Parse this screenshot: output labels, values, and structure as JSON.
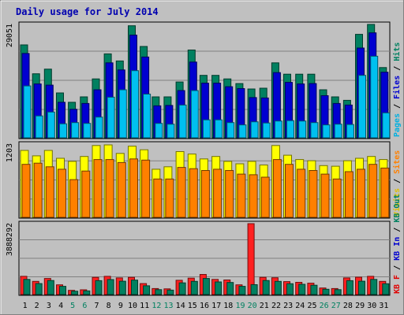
{
  "chart_data": {
    "type": "bar",
    "title": "Daily usage for July 2014",
    "categories": [
      "1",
      "2",
      "3",
      "4",
      "5",
      "6",
      "7",
      "8",
      "9",
      "10",
      "11",
      "12",
      "13",
      "14",
      "15",
      "16",
      "17",
      "18",
      "19",
      "20",
      "21",
      "22",
      "23",
      "24",
      "25",
      "26",
      "27",
      "28",
      "29",
      "30",
      "31"
    ],
    "weekend_days": [
      "5",
      "6",
      "12",
      "13",
      "19",
      "20",
      "26",
      "27"
    ],
    "panels": [
      {
        "name": "hits-files-pages",
        "max_label": "29051",
        "ymax": 29051,
        "side_labels": [
          {
            "text": "Pages",
            "color": "#00b0e0"
          },
          {
            "text": "Files",
            "color": "#0000d0"
          },
          {
            "text": "Hits",
            "color": "#008060"
          }
        ],
        "series": [
          {
            "name": "Hits",
            "color": "#008060",
            "values": [
              23800,
              16400,
              17600,
              11500,
              9100,
              10500,
              15100,
              21500,
              19700,
              28700,
              23400,
              10500,
              10500,
              14300,
              22500,
              16000,
              16000,
              15100,
              13900,
              12500,
              12700,
              19200,
              16300,
              16300,
              16300,
              12300,
              10500,
              9600,
              26500,
              29051,
              18000
            ]
          },
          {
            "name": "Files",
            "color": "#0000d0",
            "values": [
              21600,
              13800,
              13500,
              9100,
              7300,
              8800,
              12300,
              19200,
              17400,
              26300,
              20700,
              8200,
              8300,
              12100,
              19400,
              14000,
              14000,
              13100,
              12600,
              10300,
              10200,
              16700,
              14200,
              13800,
              13900,
              10800,
              8800,
              8400,
              23000,
              26900,
              16800
            ]
          },
          {
            "name": "Pages",
            "color": "#00c0f0",
            "values": [
              13300,
              5600,
              6600,
              3600,
              3900,
              3700,
              5300,
              10400,
              12300,
              17200,
              11200,
              3700,
              3500,
              8400,
              12100,
              4600,
              4600,
              3900,
              3300,
              4100,
              3800,
              4300,
              4400,
              4300,
              3900,
              3300,
              3500,
              3400,
              16000,
              20900,
              6400
            ]
          }
        ]
      },
      {
        "name": "visits-sites",
        "max_label": "1203",
        "ymax": 1203,
        "side_labels": [
          {
            "text": "Visits",
            "color": "#e0c000"
          },
          {
            "text": "Sites",
            "color": "#ff8000"
          }
        ],
        "series": [
          {
            "name": "Visits",
            "color": "#ffff00",
            "values": [
              1100,
              1010,
              1100,
              970,
              920,
              1000,
              1180,
              1190,
              1050,
              1170,
              1110,
              790,
              830,
              1080,
              1040,
              960,
              1000,
              920,
              880,
              920,
              860,
              1180,
              1020,
              950,
              930,
              850,
              840,
              930,
              970,
              1000,
              950
            ]
          },
          {
            "name": "Sites",
            "color": "#ff8000",
            "values": [
              870,
              890,
              830,
              790,
              620,
              760,
              950,
              950,
              900,
              960,
              940,
              630,
              630,
              820,
              800,
              770,
              790,
              770,
              710,
              700,
              660,
              950,
              870,
              790,
              770,
              710,
              630,
              750,
              790,
              870,
              810
            ]
          }
        ]
      },
      {
        "name": "kbf-kbin-kbout",
        "max_label": "3888292",
        "ymax": 3888292,
        "side_labels": [
          {
            "text": "KB F",
            "color": "#e00000"
          },
          {
            "text": "KB In",
            "color": "#0000d0"
          },
          {
            "text": "KB Out",
            "color": "#008060"
          }
        ],
        "series": [
          {
            "name": "KB F",
            "color": "#ff2020",
            "values": [
              1000000,
              720000,
              880000,
              530000,
              230000,
              260000,
              940000,
              1000000,
              910000,
              940000,
              600000,
              330000,
              310000,
              780000,
              900000,
              1100000,
              830000,
              800000,
              530000,
              3888292,
              940000,
              920000,
              710000,
              670000,
              620000,
              360000,
              330000,
              910000,
              950000,
              1000000,
              720000
            ]
          },
          {
            "name": "KB Out",
            "color": "#008060",
            "values": [
              830000,
              600000,
              770000,
              450000,
              180000,
              200000,
              760000,
              820000,
              730000,
              790000,
              480000,
              270000,
              240000,
              640000,
              720000,
              880000,
              690000,
              660000,
              450000,
              540000,
              770000,
              720000,
              590000,
              560000,
              510000,
              290000,
              270000,
              760000,
              730000,
              830000,
              590000
            ]
          }
        ]
      }
    ]
  }
}
